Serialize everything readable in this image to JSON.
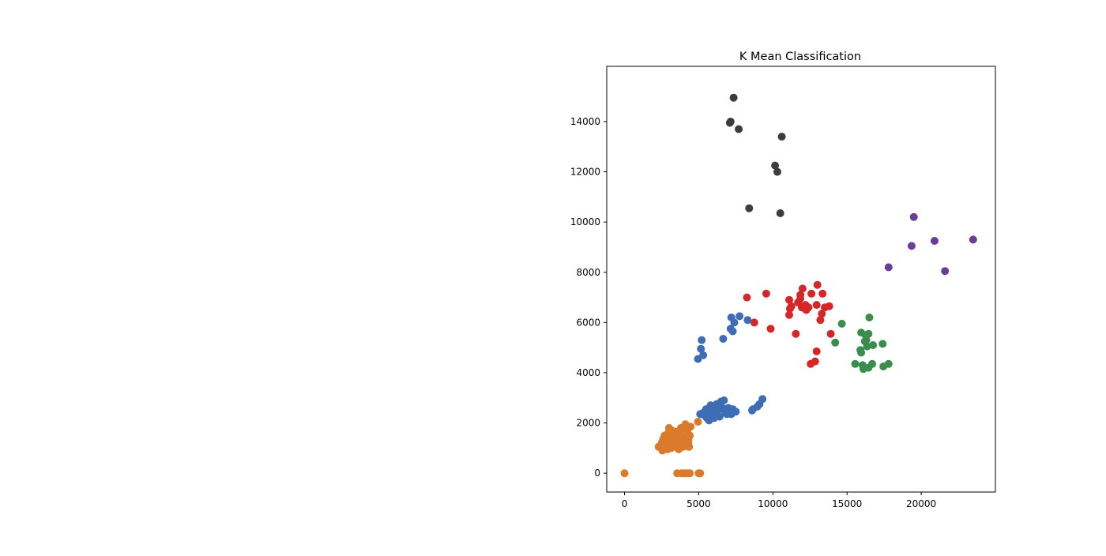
{
  "chart_data": {
    "type": "scatter",
    "title": "K Mean Classification",
    "xlabel": "",
    "ylabel": "",
    "xlim": [
      -1200,
      25000
    ],
    "ylim": [
      -750,
      16200
    ],
    "xticks": [
      0,
      5000,
      10000,
      15000,
      20000
    ],
    "yticks": [
      0,
      2000,
      4000,
      6000,
      8000,
      10000,
      12000,
      14000
    ],
    "grid": false,
    "series": [
      {
        "color": "#3c3c3c",
        "points": [
          [
            7350,
            14950
          ],
          [
            7150,
            14000
          ],
          [
            7100,
            13950
          ],
          [
            7700,
            13700
          ],
          [
            10600,
            13400
          ],
          [
            10150,
            12250
          ],
          [
            10300,
            12000
          ],
          [
            8400,
            10550
          ],
          [
            10500,
            10350
          ]
        ]
      },
      {
        "color": "#6a3d9a",
        "points": [
          [
            19500,
            10200
          ],
          [
            20900,
            9250
          ],
          [
            23500,
            9300
          ],
          [
            19350,
            9050
          ],
          [
            17800,
            8200
          ],
          [
            21600,
            8050
          ]
        ]
      },
      {
        "color": "#d62728",
        "points": [
          [
            13000,
            7500
          ],
          [
            12000,
            7350
          ],
          [
            11850,
            7100
          ],
          [
            12600,
            7150
          ],
          [
            13350,
            7150
          ],
          [
            9550,
            7150
          ],
          [
            8250,
            7000
          ],
          [
            11100,
            6900
          ],
          [
            11850,
            6950
          ],
          [
            12200,
            6700
          ],
          [
            12950,
            6700
          ],
          [
            13800,
            6650
          ],
          [
            11950,
            6600
          ],
          [
            11250,
            6650
          ],
          [
            12400,
            6600
          ],
          [
            13500,
            6600
          ],
          [
            12250,
            6500
          ],
          [
            11150,
            6550
          ],
          [
            13300,
            6350
          ],
          [
            11100,
            6300
          ],
          [
            13200,
            6100
          ],
          [
            8750,
            6000
          ],
          [
            9850,
            5750
          ],
          [
            11550,
            5550
          ],
          [
            13900,
            5550
          ],
          [
            12950,
            4850
          ],
          [
            12850,
            4450
          ],
          [
            12550,
            4350
          ],
          [
            12150,
            6650
          ],
          [
            11700,
            6800
          ]
        ]
      },
      {
        "color": "#3a8d4f",
        "points": [
          [
            16500,
            6200
          ],
          [
            14650,
            5950
          ],
          [
            15950,
            5600
          ],
          [
            16450,
            5550
          ],
          [
            16250,
            5500
          ],
          [
            14200,
            5200
          ],
          [
            16200,
            5250
          ],
          [
            16750,
            5100
          ],
          [
            17400,
            5150
          ],
          [
            16350,
            5050
          ],
          [
            15900,
            4900
          ],
          [
            15950,
            4800
          ],
          [
            15550,
            4350
          ],
          [
            16050,
            4300
          ],
          [
            16700,
            4350
          ],
          [
            17800,
            4350
          ],
          [
            17450,
            4250
          ],
          [
            16450,
            4200
          ],
          [
            16100,
            4150
          ],
          [
            16300,
            5300
          ]
        ]
      },
      {
        "color": "#3e6db5",
        "points": [
          [
            7200,
            6200
          ],
          [
            7750,
            6250
          ],
          [
            8300,
            6100
          ],
          [
            7400,
            6000
          ],
          [
            7150,
            5750
          ],
          [
            7300,
            5650
          ],
          [
            6650,
            5350
          ],
          [
            5200,
            5300
          ],
          [
            5150,
            4950
          ],
          [
            5300,
            4700
          ],
          [
            4950,
            4550
          ],
          [
            9300,
            2950
          ],
          [
            9100,
            2750
          ],
          [
            8950,
            2650
          ],
          [
            8650,
            2550
          ],
          [
            8600,
            2500
          ],
          [
            5800,
            2700
          ],
          [
            6200,
            2750
          ],
          [
            6500,
            2850
          ],
          [
            6700,
            2900
          ],
          [
            6350,
            2650
          ],
          [
            6000,
            2600
          ],
          [
            5500,
            2550
          ],
          [
            5300,
            2400
          ],
          [
            5100,
            2350
          ],
          [
            5400,
            2300
          ],
          [
            5650,
            2250
          ],
          [
            6050,
            2200
          ],
          [
            6400,
            2250
          ],
          [
            6800,
            2400
          ],
          [
            7100,
            2500
          ],
          [
            7300,
            2550
          ],
          [
            7500,
            2450
          ],
          [
            7200,
            2350
          ],
          [
            6000,
            2400
          ],
          [
            6300,
            2500
          ],
          [
            5900,
            2300
          ],
          [
            6600,
            2600
          ],
          [
            5700,
            2100
          ],
          [
            5800,
            2450
          ],
          [
            6200,
            2300
          ],
          [
            7000,
            2600
          ],
          [
            6900,
            2350
          ],
          [
            5550,
            2200
          ]
        ]
      },
      {
        "color": "#dc7a2c",
        "points": [
          [
            0,
            0
          ],
          [
            3550,
            0
          ],
          [
            3850,
            0
          ],
          [
            4050,
            0
          ],
          [
            4250,
            0
          ],
          [
            4400,
            0
          ],
          [
            5000,
            0
          ],
          [
            5100,
            0
          ],
          [
            4950,
            2050
          ],
          [
            2300,
            1050
          ],
          [
            2500,
            1200
          ],
          [
            2600,
            1350
          ],
          [
            2700,
            1500
          ],
          [
            2800,
            1100
          ],
          [
            2900,
            950
          ],
          [
            3000,
            1250
          ],
          [
            3100,
            1400
          ],
          [
            3200,
            1700
          ],
          [
            3300,
            1550
          ],
          [
            3400,
            1200
          ],
          [
            3500,
            1050
          ],
          [
            3600,
            1350
          ],
          [
            3700,
            1600
          ],
          [
            3800,
            1800
          ],
          [
            3900,
            1450
          ],
          [
            4000,
            1150
          ],
          [
            4100,
            1950
          ],
          [
            4200,
            1700
          ],
          [
            4300,
            1300
          ],
          [
            4400,
            1500
          ],
          [
            4450,
            1850
          ],
          [
            4350,
            1050
          ],
          [
            2750,
            1300
          ],
          [
            2950,
            1600
          ],
          [
            3150,
            1000
          ],
          [
            3350,
            1350
          ],
          [
            3550,
            1550
          ],
          [
            3750,
            1250
          ],
          [
            3950,
            1050
          ],
          [
            4150,
            1400
          ],
          [
            2650,
            1000
          ],
          [
            2850,
            1450
          ],
          [
            3050,
            1150
          ],
          [
            3250,
            1300
          ],
          [
            3450,
            1650
          ],
          [
            3650,
            950
          ],
          [
            3850,
            1100
          ],
          [
            4050,
            1350
          ],
          [
            4250,
            1600
          ],
          [
            2550,
            900
          ],
          [
            3000,
            1800
          ],
          [
            4300,
            1200
          ]
        ]
      }
    ]
  }
}
